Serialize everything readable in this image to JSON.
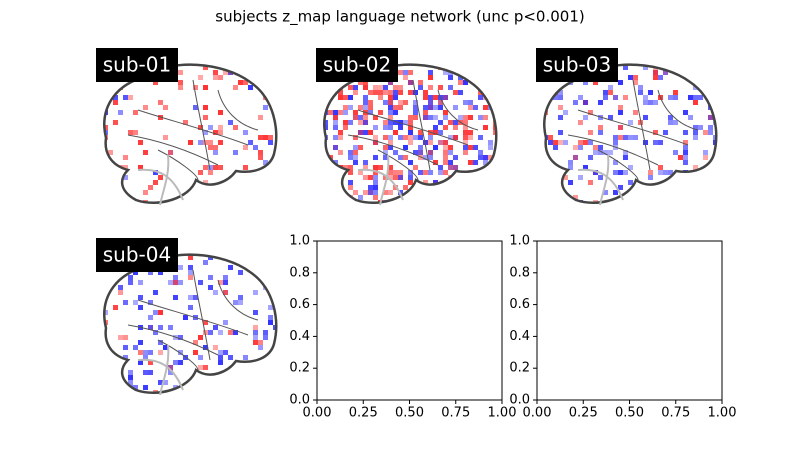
{
  "title": "subjects z_map language network (unc p<0.001)",
  "brain_panels": [
    {
      "label": "sub-01"
    },
    {
      "label": "sub-02"
    },
    {
      "label": "sub-03"
    },
    {
      "label": "sub-04"
    }
  ],
  "chart_data": [
    {
      "type": "empty",
      "xlim": [
        0,
        1
      ],
      "ylim": [
        0,
        1
      ],
      "xticks": [
        {
          "value": 0,
          "label": "0.00"
        },
        {
          "value": 0.25,
          "label": "0.25"
        },
        {
          "value": 0.5,
          "label": "0.50"
        },
        {
          "value": 0.75,
          "label": "0.75"
        },
        {
          "value": 1,
          "label": "1.00"
        }
      ],
      "yticks": [
        {
          "value": 0,
          "label": "0.0"
        },
        {
          "value": 0.2,
          "label": "0.2"
        },
        {
          "value": 0.4,
          "label": "0.4"
        },
        {
          "value": 0.6,
          "label": "0.6"
        },
        {
          "value": 0.8,
          "label": "0.8"
        },
        {
          "value": 1,
          "label": "1.0"
        }
      ]
    },
    {
      "type": "empty",
      "xlim": [
        0,
        1
      ],
      "ylim": [
        0,
        1
      ],
      "xticks": [
        {
          "value": 0,
          "label": "0.00"
        },
        {
          "value": 0.25,
          "label": "0.25"
        },
        {
          "value": 0.5,
          "label": "0.50"
        },
        {
          "value": 0.75,
          "label": "0.75"
        },
        {
          "value": 1,
          "label": "1.00"
        }
      ],
      "yticks": [
        {
          "value": 0,
          "label": "0.0"
        },
        {
          "value": 0.2,
          "label": "0.2"
        },
        {
          "value": 0.4,
          "label": "0.4"
        },
        {
          "value": 0.6,
          "label": "0.6"
        },
        {
          "value": 0.8,
          "label": "0.8"
        },
        {
          "value": 1,
          "label": "1.0"
        }
      ]
    }
  ]
}
